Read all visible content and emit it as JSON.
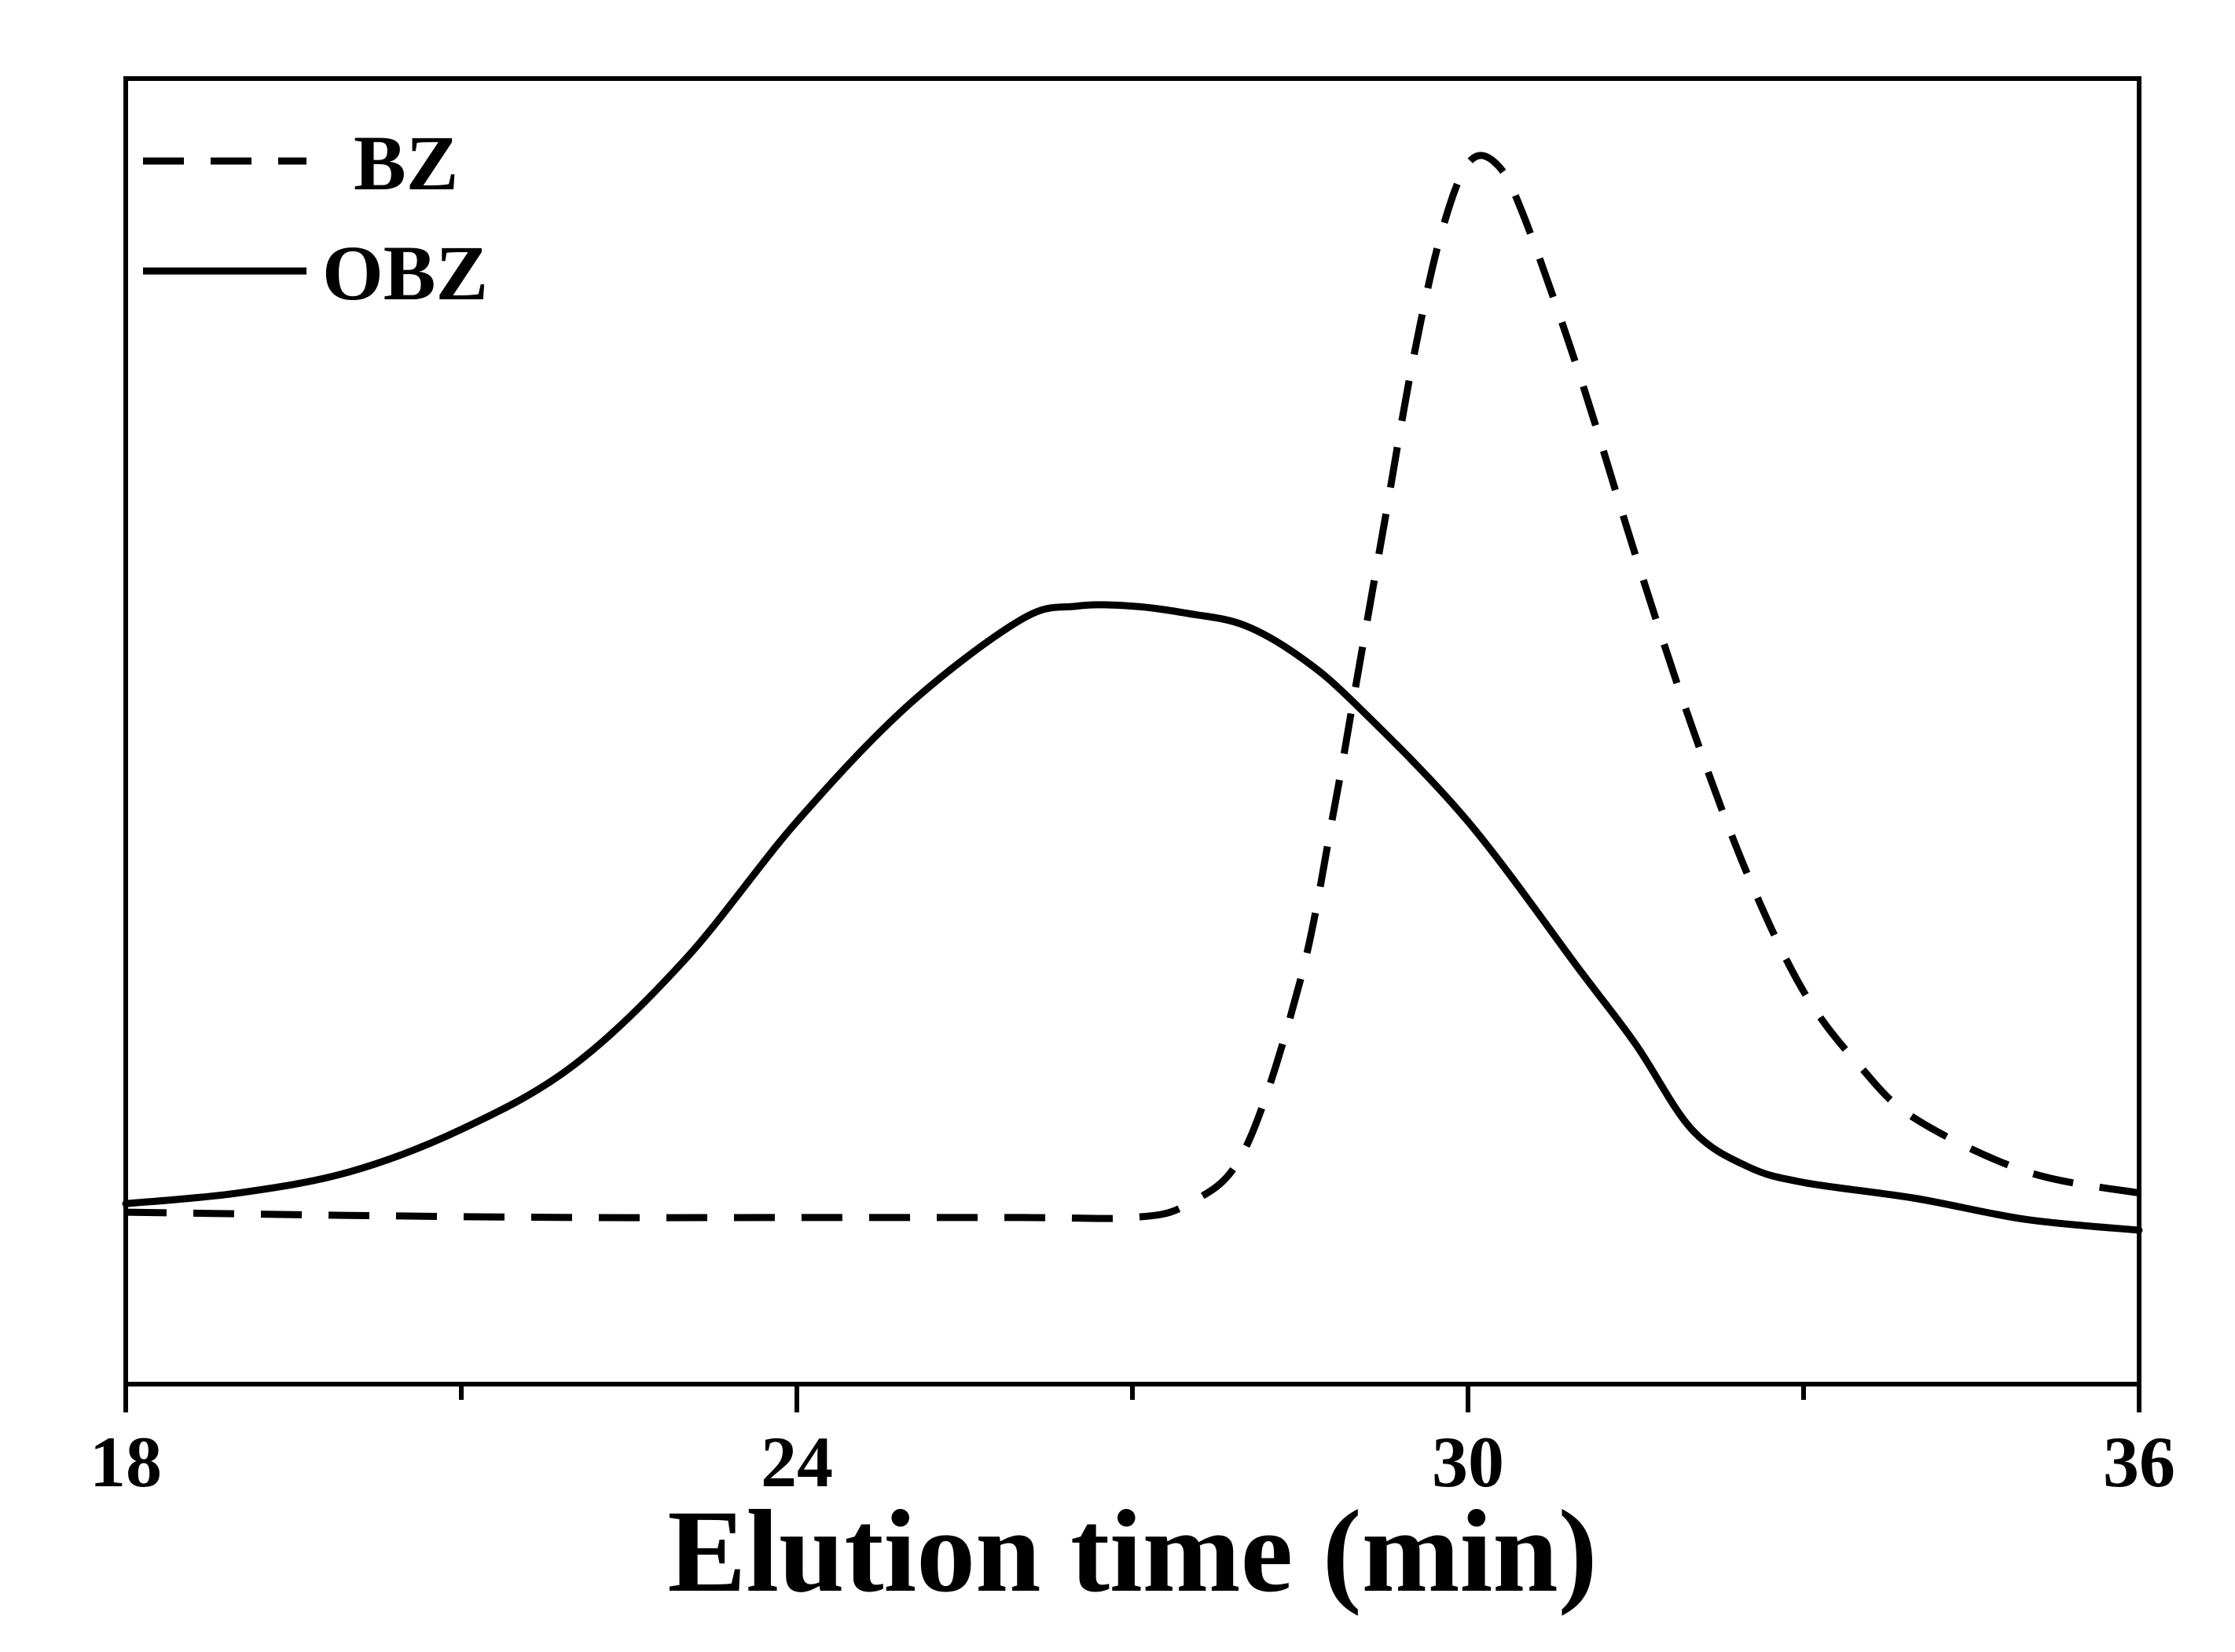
{
  "chart_data": {
    "type": "line",
    "title": "",
    "xlabel": "Elution time (min)",
    "ylabel": "",
    "xlim": [
      18,
      36
    ],
    "ylim": [
      -0.16,
      1.07
    ],
    "xticks": [
      {
        "value": 18,
        "label": "18"
      },
      {
        "value": 24,
        "label": "24"
      },
      {
        "value": 30,
        "label": "30"
      },
      {
        "value": 36,
        "label": "36"
      }
    ],
    "minor_xticks": [
      21,
      27,
      33
    ],
    "yticks": [],
    "grid": false,
    "legend": "top-left",
    "colors": {
      "line": "#000000",
      "frame": "#000000"
    },
    "series": [
      {
        "name": "BZ",
        "style": "dashed",
        "x": [
          18,
          20,
          22,
          24,
          26,
          27,
          27.5,
          28,
          28.5,
          28.8,
          29,
          29.25,
          29.5,
          29.75,
          30,
          30.25,
          30.5,
          31,
          31.5,
          32,
          32.5,
          33,
          33.5,
          34,
          35,
          36
        ],
        "y": [
          0.002,
          -0.001,
          -0.003,
          -0.003,
          -0.003,
          -0.003,
          0.01,
          0.06,
          0.22,
          0.38,
          0.5,
          0.65,
          0.8,
          0.92,
          0.99,
          0.99,
          0.94,
          0.79,
          0.62,
          0.46,
          0.32,
          0.21,
          0.14,
          0.09,
          0.04,
          0.02
        ]
      },
      {
        "name": "OBZ",
        "style": "solid",
        "x": [
          18,
          19,
          20,
          21,
          22,
          23,
          24,
          25,
          26,
          26.5,
          27,
          27.5,
          28,
          28.5,
          29,
          30,
          31,
          31.5,
          32,
          32.5,
          33,
          34,
          35,
          36
        ],
        "y": [
          0.01,
          0.02,
          0.04,
          0.08,
          0.14,
          0.24,
          0.37,
          0.48,
          0.56,
          0.573,
          0.573,
          0.566,
          0.555,
          0.525,
          0.48,
          0.37,
          0.23,
          0.16,
          0.08,
          0.045,
          0.03,
          0.015,
          -0.005,
          -0.015
        ]
      }
    ]
  }
}
